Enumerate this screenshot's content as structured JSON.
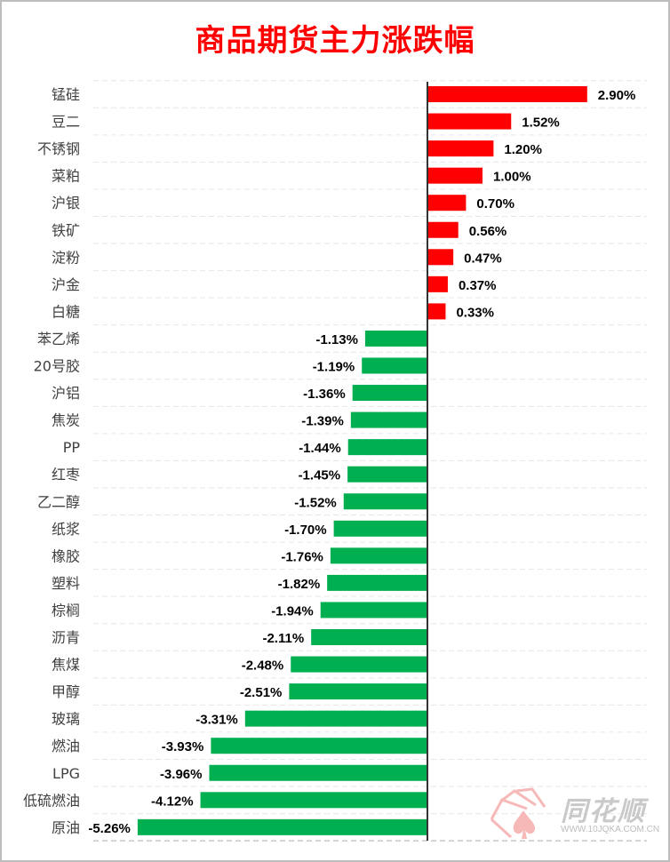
{
  "chart_data": {
    "type": "bar",
    "orientation": "horizontal",
    "title": "商品期货主力涨跌幅",
    "categories": [
      "锰硅",
      "豆二",
      "不锈钢",
      "菜粕",
      "沪银",
      "铁矿",
      "淀粉",
      "沪金",
      "白糖",
      "苯乙烯",
      "20号胶",
      "沪铝",
      "焦炭",
      "PP",
      "红枣",
      "乙二醇",
      "纸浆",
      "橡胶",
      "塑料",
      "棕榈",
      "沥青",
      "焦煤",
      "甲醇",
      "玻璃",
      "燃油",
      "LPG",
      "低硫燃油",
      "原油"
    ],
    "values": [
      2.9,
      1.52,
      1.2,
      1.0,
      0.7,
      0.56,
      0.47,
      0.37,
      0.33,
      -1.13,
      -1.19,
      -1.36,
      -1.39,
      -1.44,
      -1.45,
      -1.52,
      -1.7,
      -1.76,
      -1.82,
      -1.94,
      -2.11,
      -2.48,
      -2.51,
      -3.31,
      -3.93,
      -3.96,
      -4.12,
      -5.26
    ],
    "unit": "%",
    "xlim": [
      -5.26,
      2.9
    ],
    "grid": "horizontal dashed",
    "colors": {
      "positive": "#ff0000",
      "negative": "#00b050",
      "title": "#ff0000"
    }
  },
  "watermark": {
    "name": "同花顺",
    "url": "WWW.10JQKA.COM.CN"
  }
}
